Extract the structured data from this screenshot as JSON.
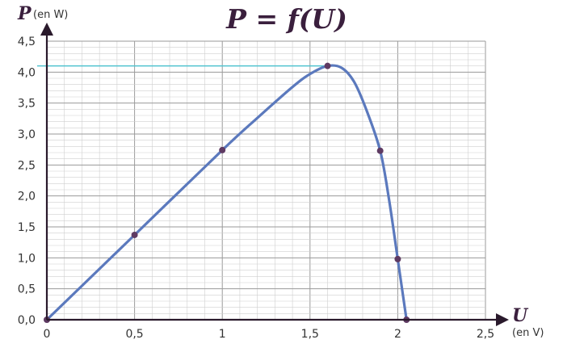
{
  "chart_data": {
    "type": "line",
    "title": "P = f(U)",
    "x_axis": {
      "symbol": "U",
      "unit": "(en V)",
      "range": [
        0,
        2.5
      ],
      "major_step": 0.5,
      "minor_step": 0.1
    },
    "y_axis": {
      "symbol": "P",
      "unit": "(en W)",
      "range": [
        0,
        4.5
      ],
      "major_step": 0.5,
      "minor_step": 0.1
    },
    "x_ticks": [
      {
        "value": 0,
        "label": "0"
      },
      {
        "value": 0.5,
        "label": "0,5"
      },
      {
        "value": 1,
        "label": "1"
      },
      {
        "value": 1.5,
        "label": "1,5"
      },
      {
        "value": 2,
        "label": "2"
      },
      {
        "value": 2.5,
        "label": "2,5"
      }
    ],
    "y_ticks": [
      {
        "value": 0,
        "label": "0,0"
      },
      {
        "value": 0.5,
        "label": "0,5"
      },
      {
        "value": 1,
        "label": "1,0"
      },
      {
        "value": 1.5,
        "label": "1,5"
      },
      {
        "value": 2,
        "label": "2,0"
      },
      {
        "value": 2.5,
        "label": "2,5"
      },
      {
        "value": 3,
        "label": "3,0"
      },
      {
        "value": 3.5,
        "label": "3,5"
      },
      {
        "value": 4,
        "label": "4,0"
      },
      {
        "value": 4.5,
        "label": "4,5"
      }
    ],
    "points": [
      {
        "x": 0,
        "y": 0
      },
      {
        "x": 0.5,
        "y": 1.37
      },
      {
        "x": 1.0,
        "y": 2.74
      },
      {
        "x": 1.6,
        "y": 4.1
      },
      {
        "x": 1.9,
        "y": 2.73
      },
      {
        "x": 2.0,
        "y": 0.98
      },
      {
        "x": 2.05,
        "y": 0
      }
    ],
    "curve": [
      {
        "x": 0,
        "y": 0
      },
      {
        "x": 0.5,
        "y": 1.37
      },
      {
        "x": 1.0,
        "y": 2.74
      },
      {
        "x": 1.2,
        "y": 3.26
      },
      {
        "x": 1.4,
        "y": 3.76
      },
      {
        "x": 1.5,
        "y": 3.97
      },
      {
        "x": 1.6,
        "y": 4.1
      },
      {
        "x": 1.68,
        "y": 4.07
      },
      {
        "x": 1.75,
        "y": 3.85
      },
      {
        "x": 1.82,
        "y": 3.4
      },
      {
        "x": 1.9,
        "y": 2.73
      },
      {
        "x": 1.95,
        "y": 1.95
      },
      {
        "x": 2.0,
        "y": 0.98
      },
      {
        "x": 2.05,
        "y": 0
      }
    ],
    "max_guide": {
      "y": 4.1,
      "x_to": 1.6
    },
    "grid": true,
    "colors": {
      "curve": "#5b79bd",
      "marker": "#5e3a62",
      "guide": "#52c3cf",
      "grid_major": "#9a9a9a",
      "grid_minor": "#cfcfcf",
      "axis": "#2a1a2c"
    }
  }
}
